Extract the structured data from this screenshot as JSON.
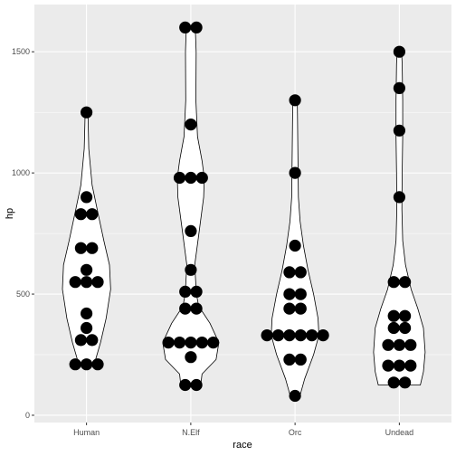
{
  "chart_data": {
    "type": "violin+dotplot",
    "xlabel": "race",
    "ylabel": "hp",
    "categories": [
      "Human",
      "N.Elf",
      "Orc",
      "Undead"
    ],
    "ylim": [
      -30,
      1695
    ],
    "yticks": [
      0,
      500,
      1000,
      1500
    ],
    "grid": true,
    "legend": "none",
    "colors": {
      "panel": "#EBEBEB",
      "grid_major": "#FFFFFF",
      "dots": "#000000",
      "violin_fill": "#FFFFFF",
      "violin_line": "#000000"
    },
    "series": [
      {
        "category": "Human",
        "points": [
          {
            "y": 1250,
            "n": 1
          },
          {
            "y": 900,
            "n": 1
          },
          {
            "y": 830,
            "n": 2
          },
          {
            "y": 690,
            "n": 2
          },
          {
            "y": 600,
            "n": 1
          },
          {
            "y": 550,
            "n": 3
          },
          {
            "y": 420,
            "n": 1
          },
          {
            "y": 360,
            "n": 1
          },
          {
            "y": 310,
            "n": 2
          },
          {
            "y": 210,
            "n": 3
          }
        ],
        "violin": [
          [
            200,
            0.05
          ],
          [
            220,
            0.3
          ],
          [
            300,
            0.5
          ],
          [
            400,
            0.7
          ],
          [
            520,
            0.86
          ],
          [
            620,
            0.82
          ],
          [
            720,
            0.62
          ],
          [
            850,
            0.38
          ],
          [
            950,
            0.2
          ],
          [
            1100,
            0.08
          ],
          [
            1200,
            0.06
          ],
          [
            1250,
            0.05
          ]
        ]
      },
      {
        "category": "N.Elf",
        "points": [
          {
            "y": 1600,
            "n": 2
          },
          {
            "y": 1200,
            "n": 1
          },
          {
            "y": 980,
            "n": 3
          },
          {
            "y": 760,
            "n": 1
          },
          {
            "y": 600,
            "n": 1
          },
          {
            "y": 510,
            "n": 2
          },
          {
            "y": 440,
            "n": 2
          },
          {
            "y": 300,
            "n": 5
          },
          {
            "y": 240,
            "n": 1
          },
          {
            "y": 125,
            "n": 2
          }
        ],
        "violin": [
          [
            120,
            0.35
          ],
          [
            170,
            0.4
          ],
          [
            230,
            0.9
          ],
          [
            300,
            1.0
          ],
          [
            380,
            0.68
          ],
          [
            450,
            0.28
          ],
          [
            500,
            0.2
          ],
          [
            620,
            0.14
          ],
          [
            760,
            0.3
          ],
          [
            900,
            0.46
          ],
          [
            980,
            0.48
          ],
          [
            1050,
            0.4
          ],
          [
            1150,
            0.24
          ],
          [
            1300,
            0.18
          ],
          [
            1500,
            0.19
          ],
          [
            1600,
            0.16
          ]
        ]
      },
      {
        "category": "Orc",
        "points": [
          {
            "y": 1300,
            "n": 1
          },
          {
            "y": 1000,
            "n": 1
          },
          {
            "y": 700,
            "n": 1
          },
          {
            "y": 590,
            "n": 2
          },
          {
            "y": 500,
            "n": 2
          },
          {
            "y": 440,
            "n": 2
          },
          {
            "y": 330,
            "n": 6
          },
          {
            "y": 230,
            "n": 2
          },
          {
            "y": 80,
            "n": 1
          }
        ],
        "violin": [
          [
            75,
            0.16
          ],
          [
            150,
            0.34
          ],
          [
            250,
            0.66
          ],
          [
            330,
            0.85
          ],
          [
            400,
            0.82
          ],
          [
            500,
            0.66
          ],
          [
            600,
            0.46
          ],
          [
            700,
            0.3
          ],
          [
            800,
            0.18
          ],
          [
            900,
            0.12
          ],
          [
            1000,
            0.11
          ],
          [
            1100,
            0.1
          ],
          [
            1200,
            0.09
          ],
          [
            1300,
            0.08
          ]
        ]
      },
      {
        "category": "Undead",
        "points": [
          {
            "y": 1500,
            "n": 1
          },
          {
            "y": 1350,
            "n": 1
          },
          {
            "y": 1175,
            "n": 1
          },
          {
            "y": 900,
            "n": 1
          },
          {
            "y": 550,
            "n": 2
          },
          {
            "y": 410,
            "n": 2
          },
          {
            "y": 360,
            "n": 2
          },
          {
            "y": 290,
            "n": 3
          },
          {
            "y": 205,
            "n": 3
          },
          {
            "y": 135,
            "n": 2
          }
        ],
        "violin": [
          [
            125,
            0.75
          ],
          [
            180,
            0.86
          ],
          [
            260,
            0.92
          ],
          [
            360,
            0.86
          ],
          [
            440,
            0.66
          ],
          [
            520,
            0.42
          ],
          [
            620,
            0.22
          ],
          [
            720,
            0.12
          ],
          [
            850,
            0.09
          ],
          [
            1000,
            0.1
          ],
          [
            1150,
            0.12
          ],
          [
            1300,
            0.12
          ],
          [
            1450,
            0.1
          ],
          [
            1500,
            0.08
          ]
        ]
      }
    ]
  }
}
